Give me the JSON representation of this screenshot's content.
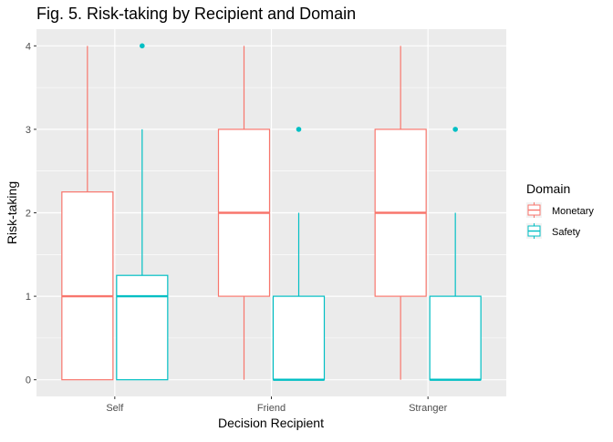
{
  "chart_data": {
    "type": "boxplot",
    "title": "Fig. 5. Risk-taking by Recipient and Domain",
    "xlabel": "Decision Recipient",
    "ylabel": "Risk-taking",
    "categories": [
      "Self",
      "Friend",
      "Stranger"
    ],
    "ylim": [
      -0.2,
      4.2
    ],
    "yticks": [
      0,
      1,
      2,
      3,
      4
    ],
    "grid": true,
    "legend": {
      "title": "Domain",
      "placement": "right",
      "entries": [
        "Monetary",
        "Safety"
      ]
    },
    "series": [
      {
        "name": "Monetary",
        "color": "#F8766D",
        "boxes": [
          {
            "category": "Self",
            "min": 0,
            "q1": 0,
            "median": 1,
            "q3": 2.25,
            "max": 4,
            "outliers": []
          },
          {
            "category": "Friend",
            "min": 0,
            "q1": 1,
            "median": 2,
            "q3": 3,
            "max": 4,
            "outliers": []
          },
          {
            "category": "Stranger",
            "min": 0,
            "q1": 1,
            "median": 2,
            "q3": 3,
            "max": 4,
            "outliers": []
          }
        ]
      },
      {
        "name": "Safety",
        "color": "#00BFC4",
        "boxes": [
          {
            "category": "Self",
            "min": 0,
            "q1": 0,
            "median": 1,
            "q3": 1.25,
            "max": 3,
            "outliers": [
              4
            ]
          },
          {
            "category": "Friend",
            "min": 0,
            "q1": 0,
            "median": 0,
            "q3": 1,
            "max": 2,
            "outliers": [
              3
            ]
          },
          {
            "category": "Stranger",
            "min": 0,
            "q1": 0,
            "median": 0,
            "q3": 1,
            "max": 2,
            "outliers": [
              3
            ]
          }
        ]
      }
    ]
  }
}
